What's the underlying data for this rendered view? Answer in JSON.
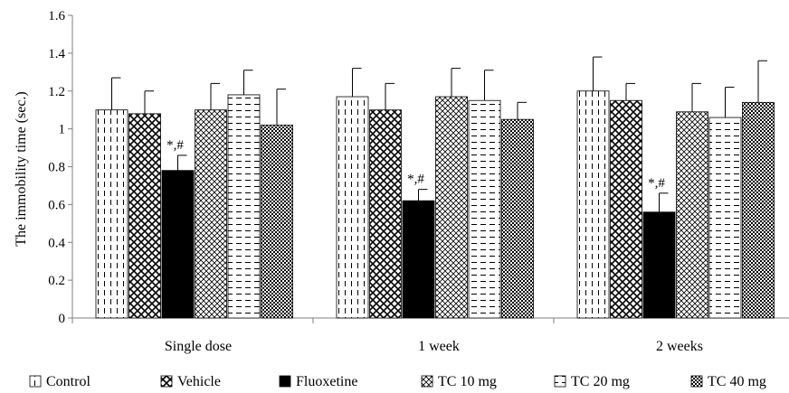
{
  "chart_data": {
    "type": "bar",
    "title": "",
    "xlabel": "",
    "ylabel": "The immobility time (sec.)",
    "ylim": [
      0,
      1.6
    ],
    "yticks": [
      "0",
      "0.2",
      "0.4",
      "0.6",
      "0.8",
      "1",
      "1.2",
      "1.4",
      "1.6"
    ],
    "grid": false,
    "legend_position": "bottom",
    "categories": [
      "Single dose",
      "1 week",
      "2 weeks"
    ],
    "series": [
      {
        "name": "Control",
        "values": [
          1.1,
          1.17,
          1.2
        ],
        "errors": [
          0.17,
          0.15,
          0.18
        ],
        "pattern": "dashed-vertical"
      },
      {
        "name": "Vehicle",
        "values": [
          1.08,
          1.1,
          1.15
        ],
        "errors": [
          0.12,
          0.14,
          0.09
        ],
        "pattern": "diamond"
      },
      {
        "name": "Fluoxetine",
        "values": [
          0.78,
          0.62,
          0.56
        ],
        "errors": [
          0.08,
          0.06,
          0.1
        ],
        "pattern": "solid"
      },
      {
        "name": "TC 10 mg",
        "values": [
          1.1,
          1.17,
          1.09
        ],
        "errors": [
          0.14,
          0.15,
          0.15
        ],
        "pattern": "cross"
      },
      {
        "name": "TC 20 mg",
        "values": [
          1.18,
          1.15,
          1.06
        ],
        "errors": [
          0.13,
          0.16,
          0.16
        ],
        "pattern": "dashed-horizontal"
      },
      {
        "name": "TC 40 mg",
        "values": [
          1.02,
          1.05,
          1.14
        ],
        "errors": [
          0.19,
          0.09,
          0.22
        ],
        "pattern": "checker"
      }
    ],
    "annotations": [
      {
        "text": "*,#",
        "category_index": 0,
        "series_index": 2
      },
      {
        "text": "*,#",
        "category_index": 1,
        "series_index": 2
      },
      {
        "text": "*,#",
        "category_index": 2,
        "series_index": 2
      }
    ]
  }
}
